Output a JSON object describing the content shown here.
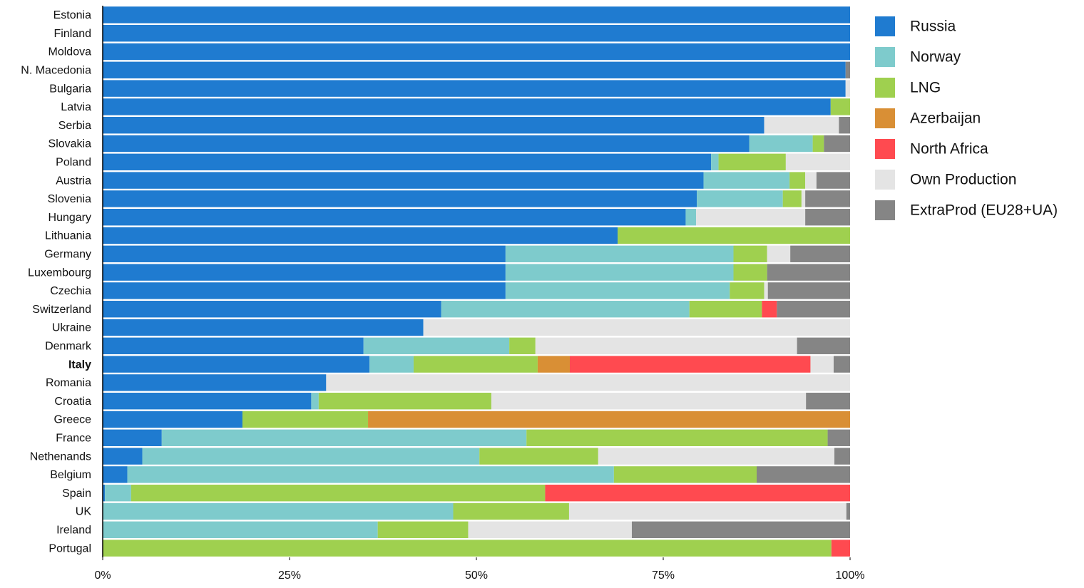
{
  "chart_data": {
    "type": "stacked_bar_horizontal",
    "categories": [
      "Estonia",
      "Finland",
      "Moldova",
      "N. Macedonia",
      "Bulgaria",
      "Latvia",
      "Serbia",
      "Slovakia",
      "Poland",
      "Austria",
      "Slovenia",
      "Hungary",
      "Lithuania",
      "Germany",
      "Luxembourg",
      "Czechia",
      "Switzerland",
      "Ukraine",
      "Denmark",
      "Italy",
      "Romania",
      "Croatia",
      "Greece",
      "France",
      "Nethenands",
      "Belgium",
      "Spain",
      "UK",
      "Ireland",
      "Portugal"
    ],
    "highlight_index": 19,
    "series": [
      {
        "name": "Russia",
        "color": "#1f7bd0",
        "values": [
          100,
          100,
          100,
          99.4,
          99.4,
          97.4,
          88.5,
          86.5,
          81.4,
          80.4,
          79.5,
          78.0,
          68.9,
          53.9,
          53.9,
          53.9,
          45.3,
          42.9,
          34.9,
          35.7,
          29.9,
          27.9,
          18.7,
          7.9,
          5.3,
          3.3,
          0.3,
          0,
          0,
          0
        ]
      },
      {
        "name": "Norway",
        "color": "#7ecbcc",
        "values": [
          0,
          0,
          0,
          0,
          0,
          0,
          0,
          8.5,
          1.0,
          11.5,
          11.5,
          1.4,
          0,
          30.5,
          30.5,
          30.0,
          33.2,
          0,
          19.5,
          5.9,
          0,
          1.0,
          0,
          48.8,
          45.1,
          65.1,
          3.5,
          46.9,
          36.8,
          0
        ]
      },
      {
        "name": "LNG",
        "color": "#9fd04f",
        "values": [
          0,
          0,
          0,
          0,
          0,
          2.6,
          0,
          1.5,
          9.0,
          2.1,
          2.5,
          0,
          31.1,
          4.5,
          4.5,
          4.6,
          9.7,
          0,
          3.5,
          16.6,
          0,
          23.1,
          16.8,
          40.3,
          15.9,
          19.1,
          55.4,
          15.5,
          12.1,
          97.5
        ]
      },
      {
        "name": "Azerbaijan",
        "color": "#d98f35",
        "values": [
          0,
          0,
          0,
          0,
          0,
          0,
          0,
          0,
          0,
          0,
          0,
          0,
          0,
          0,
          0,
          0,
          0,
          0,
          0,
          4.3,
          0,
          0,
          64.5,
          0,
          0,
          0,
          0,
          0,
          0,
          0
        ]
      },
      {
        "name": "North Africa",
        "color": "#ff4a50",
        "values": [
          0,
          0,
          0,
          0,
          0,
          0,
          0,
          0,
          0,
          0,
          0,
          0,
          0,
          0,
          0,
          0,
          2.0,
          0,
          0,
          32.2,
          0,
          0,
          0,
          0,
          0,
          0,
          40.8,
          0,
          0,
          2.5
        ]
      },
      {
        "name": "Own Production",
        "color": "#e4e4e4",
        "values": [
          0,
          0,
          0,
          0,
          0.6,
          0,
          10.0,
          0,
          8.6,
          1.5,
          0.5,
          14.6,
          0,
          3.1,
          0,
          0.5,
          0,
          57.1,
          35.0,
          3.1,
          70.1,
          42.1,
          0,
          0,
          31.6,
          0,
          0,
          37.1,
          21.9,
          0
        ]
      },
      {
        "name": "ExtraProd (EU28+UA)",
        "color": "#858585",
        "values": [
          0,
          0,
          0,
          0.6,
          0,
          0,
          1.5,
          3.5,
          0,
          4.5,
          6.0,
          6.0,
          0,
          8.0,
          11.1,
          11.0,
          9.8,
          0,
          7.1,
          2.2,
          0,
          5.9,
          0,
          3.0,
          2.1,
          12.5,
          0,
          0.5,
          29.2,
          0
        ]
      }
    ],
    "xlim": [
      0,
      100
    ],
    "xticks": [
      {
        "value": 0,
        "label": "0%"
      },
      {
        "value": 25,
        "label": "25%"
      },
      {
        "value": 50,
        "label": "50%"
      },
      {
        "value": 75,
        "label": "75%"
      },
      {
        "value": 100,
        "label": "100%"
      }
    ],
    "legend": "right"
  }
}
